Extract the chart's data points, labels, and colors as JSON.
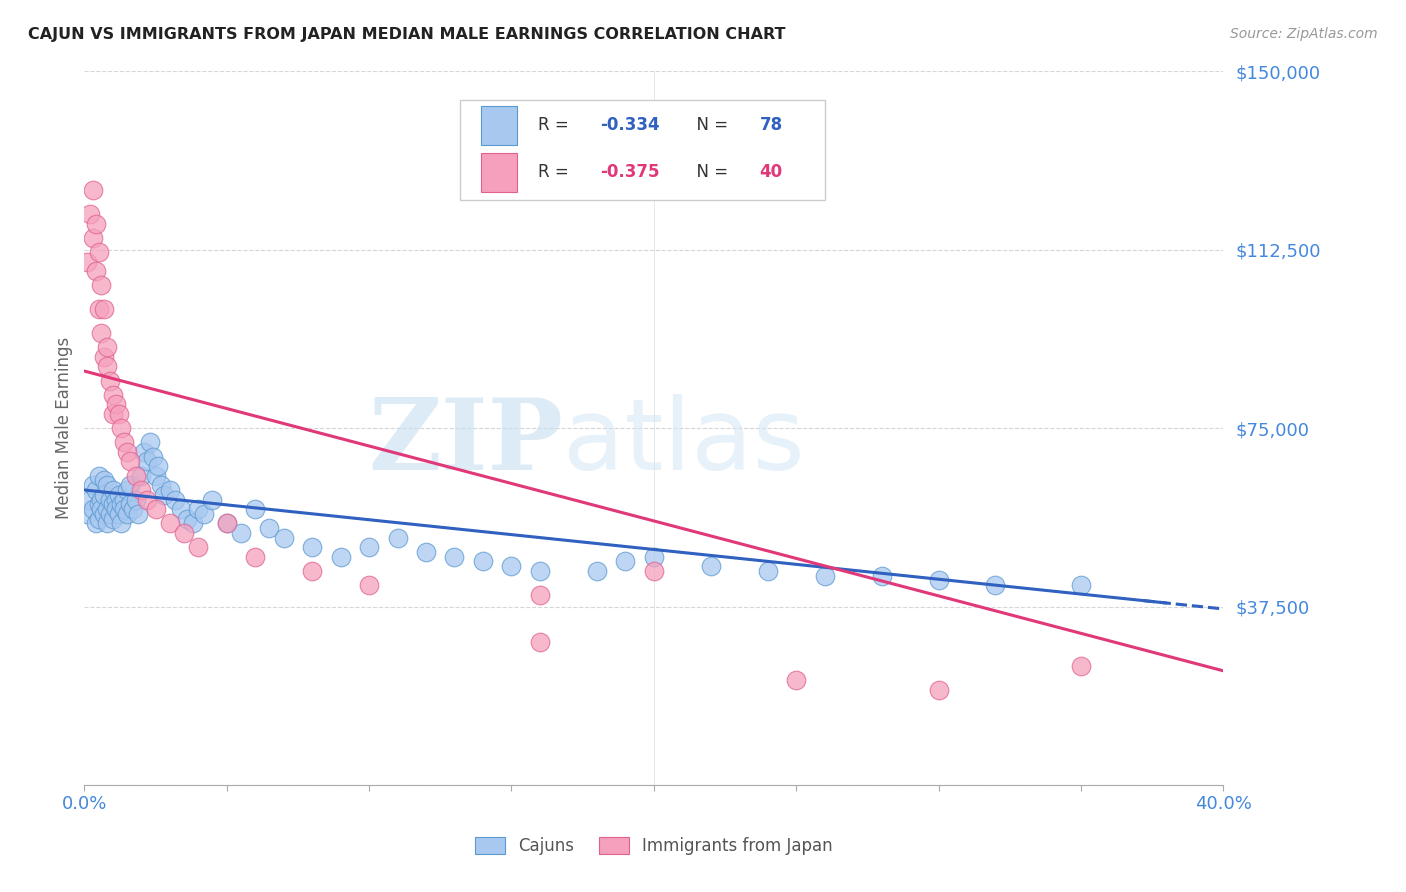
{
  "title": "CAJUN VS IMMIGRANTS FROM JAPAN MEDIAN MALE EARNINGS CORRELATION CHART",
  "source": "Source: ZipAtlas.com",
  "ylabel": "Median Male Earnings",
  "xlim": [
    0.0,
    0.4
  ],
  "ylim": [
    0,
    150000
  ],
  "yticks": [
    0,
    37500,
    75000,
    112500,
    150000
  ],
  "ytick_labels": [
    "",
    "$37,500",
    "$75,000",
    "$112,500",
    "$150,000"
  ],
  "xtick_positions": [
    0.0,
    0.05,
    0.1,
    0.15,
    0.2,
    0.25,
    0.3,
    0.35,
    0.4
  ],
  "cajun_color": "#a8c8f0",
  "japan_color": "#f5a0bc",
  "cajun_edge_color": "#5a9ad0",
  "japan_edge_color": "#e06090",
  "trend_color_blue": "#3060c0",
  "trend_color_pink": "#e03878",
  "axis_color": "#4488dd",
  "grid_color": "#cccccc",
  "title_color": "#222222",
  "watermark_zip": "ZIP",
  "watermark_atlas": "atlas",
  "cajun_trend_x0": 0.0,
  "cajun_trend_y0": 62000,
  "cajun_trend_x1": 0.4,
  "cajun_trend_y1": 37000,
  "japan_trend_x0": 0.0,
  "japan_trend_y0": 87000,
  "japan_trend_x1": 0.4,
  "japan_trend_y1": 24000,
  "cajun_scatter_x": [
    0.001,
    0.002,
    0.003,
    0.003,
    0.004,
    0.004,
    0.005,
    0.005,
    0.005,
    0.006,
    0.006,
    0.007,
    0.007,
    0.007,
    0.008,
    0.008,
    0.008,
    0.009,
    0.009,
    0.01,
    0.01,
    0.01,
    0.011,
    0.011,
    0.012,
    0.012,
    0.013,
    0.013,
    0.014,
    0.014,
    0.015,
    0.015,
    0.016,
    0.016,
    0.017,
    0.018,
    0.019,
    0.02,
    0.021,
    0.022,
    0.023,
    0.024,
    0.025,
    0.026,
    0.027,
    0.028,
    0.03,
    0.032,
    0.034,
    0.036,
    0.038,
    0.04,
    0.042,
    0.045,
    0.05,
    0.055,
    0.06,
    0.065,
    0.07,
    0.08,
    0.09,
    0.1,
    0.11,
    0.12,
    0.13,
    0.14,
    0.15,
    0.16,
    0.18,
    0.2,
    0.22,
    0.24,
    0.26,
    0.3,
    0.32,
    0.35,
    0.28,
    0.19
  ],
  "cajun_scatter_y": [
    57000,
    60000,
    58000,
    63000,
    55000,
    62000,
    59000,
    65000,
    56000,
    60000,
    58000,
    57000,
    64000,
    61000,
    58000,
    55000,
    63000,
    60000,
    57000,
    59000,
    62000,
    56000,
    60000,
    58000,
    57000,
    61000,
    59000,
    55000,
    60000,
    58000,
    62000,
    57000,
    59000,
    63000,
    58000,
    60000,
    57000,
    65000,
    70000,
    68000,
    72000,
    69000,
    65000,
    67000,
    63000,
    61000,
    62000,
    60000,
    58000,
    56000,
    55000,
    58000,
    57000,
    60000,
    55000,
    53000,
    58000,
    54000,
    52000,
    50000,
    48000,
    50000,
    52000,
    49000,
    48000,
    47000,
    46000,
    45000,
    45000,
    48000,
    46000,
    45000,
    44000,
    43000,
    42000,
    42000,
    44000,
    47000
  ],
  "japan_scatter_x": [
    0.001,
    0.002,
    0.003,
    0.003,
    0.004,
    0.004,
    0.005,
    0.005,
    0.006,
    0.006,
    0.007,
    0.007,
    0.008,
    0.008,
    0.009,
    0.01,
    0.01,
    0.011,
    0.012,
    0.013,
    0.014,
    0.015,
    0.016,
    0.018,
    0.02,
    0.022,
    0.025,
    0.03,
    0.035,
    0.04,
    0.05,
    0.06,
    0.08,
    0.1,
    0.16,
    0.2,
    0.25,
    0.3,
    0.35,
    0.16
  ],
  "japan_scatter_y": [
    110000,
    120000,
    115000,
    125000,
    108000,
    118000,
    100000,
    112000,
    95000,
    105000,
    90000,
    100000,
    92000,
    88000,
    85000,
    82000,
    78000,
    80000,
    78000,
    75000,
    72000,
    70000,
    68000,
    65000,
    62000,
    60000,
    58000,
    55000,
    53000,
    50000,
    55000,
    48000,
    45000,
    42000,
    30000,
    45000,
    22000,
    20000,
    25000,
    40000
  ]
}
